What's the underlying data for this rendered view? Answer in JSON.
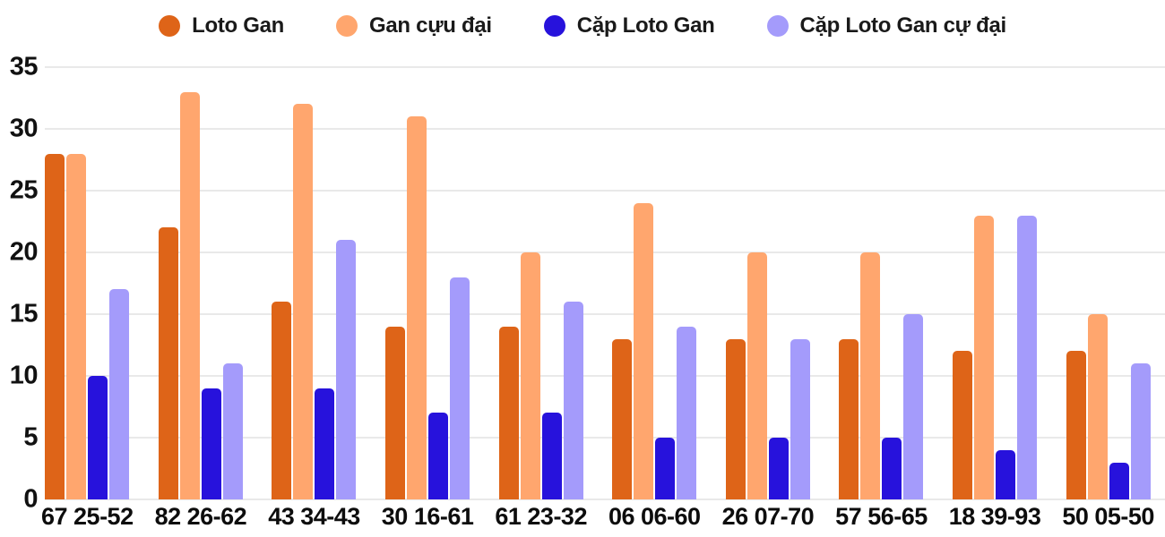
{
  "chart_data": {
    "type": "bar",
    "title": "",
    "categories": [
      "67 25-52",
      "82 26-62",
      "43 34-43",
      "30 16-61",
      "61 23-32",
      "06 06-60",
      "26 07-70",
      "57 56-65",
      "18 39-93",
      "50 05-50"
    ],
    "series": [
      {
        "name": "Loto Gan",
        "color": "#DE6418",
        "values": [
          28,
          22,
          16,
          14,
          14,
          13,
          13,
          13,
          12,
          12
        ]
      },
      {
        "name": "Gan cựu đại",
        "color": "#FFA66E",
        "values": [
          28,
          33,
          32,
          31,
          20,
          24,
          20,
          20,
          23,
          15
        ]
      },
      {
        "name": "Cặp Loto Gan",
        "color": "#2712DC",
        "values": [
          10,
          9,
          9,
          7,
          7,
          5,
          5,
          5,
          4,
          3
        ]
      },
      {
        "name": "Cặp Loto Gan cự đại",
        "color": "#A49BFB",
        "values": [
          17,
          11,
          21,
          18,
          16,
          14,
          13,
          15,
          23,
          11
        ]
      }
    ],
    "xlabel": "",
    "ylabel": "",
    "ylim": [
      0,
      35
    ],
    "yticks": [
      0,
      5,
      10,
      15,
      20,
      25,
      30,
      35
    ],
    "grid": true,
    "legend_position": "top",
    "background_color": "#FFFFFF",
    "axis_text_color": "#111111",
    "gridline_color": "#E9E9E9"
  }
}
